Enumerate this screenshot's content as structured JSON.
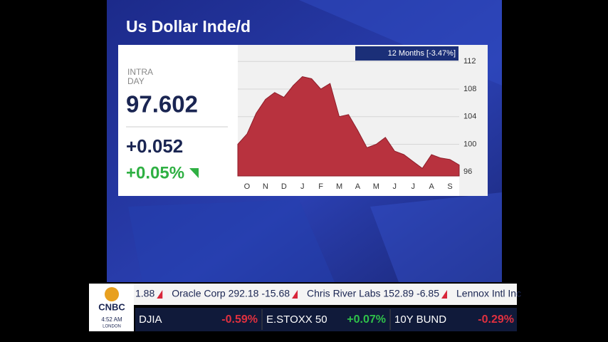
{
  "chart_data": {
    "type": "area",
    "title": "Us Dollar Inde/d",
    "legend_label": "12 Months [-3.47%]",
    "categories": [
      null,
      "O",
      null,
      "N",
      null,
      "D",
      null,
      "J",
      null,
      "F",
      null,
      "M",
      null,
      "A",
      null,
      "M",
      null,
      "J",
      null,
      "J",
      null,
      "A",
      null,
      "S",
      null
    ],
    "series": [
      {
        "color": "#b8323e",
        "values": [
          100.0,
          101.5,
          104.5,
          106.5,
          107.5,
          106.8,
          108.5,
          109.8,
          109.5,
          108.0,
          108.8,
          104.0,
          104.3,
          102.0,
          99.5,
          100.0,
          101.0,
          99.0,
          98.5,
          97.5,
          96.5,
          98.5,
          98.0,
          97.8,
          97.0
        ]
      }
    ],
    "ylim": [
      95.4,
      114.4
    ],
    "yticks": [
      96,
      100,
      104,
      108,
      112
    ],
    "grid": true
  },
  "quote": {
    "label_lines": [
      "INTRA",
      "DAY"
    ],
    "price": "97.602",
    "change": "+0.052",
    "change_pct": "+0.05%"
  },
  "ticker": [
    {
      "text": "1.88"
    },
    {
      "text": "Oracle Corp 292.18 -15.68"
    },
    {
      "text": "Chris River Labs 152.89 -6.85"
    },
    {
      "text": "Lennox Intl Inc"
    }
  ],
  "indices": [
    {
      "name": "DJIA",
      "change": "-0.59%"
    },
    {
      "name": "E.STOXX 50",
      "change": "+0.07%"
    },
    {
      "name": "10Y BUND",
      "change": "-0.29%"
    }
  ],
  "logo": {
    "brand": "CNBC",
    "time": "4:52 AM",
    "city": "LONDON"
  }
}
